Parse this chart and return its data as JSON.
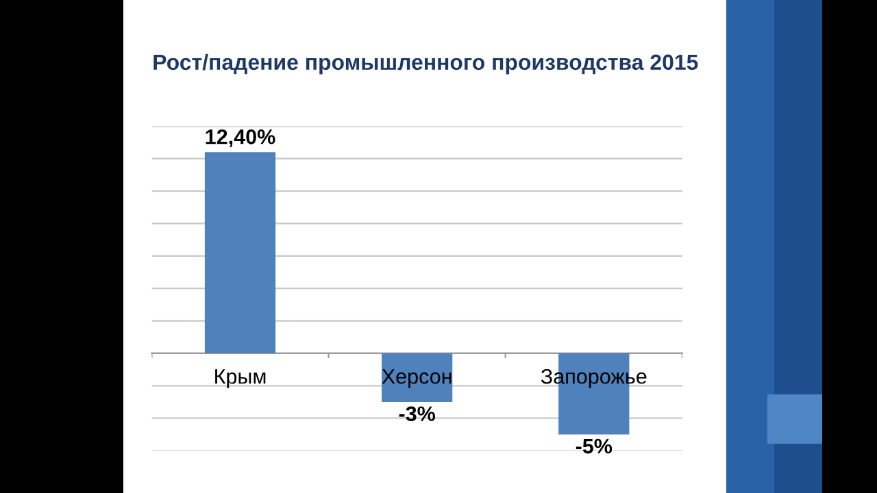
{
  "chart_data": {
    "type": "bar",
    "title": "Рост/падение промышленного производства 2015",
    "categories": [
      "Крым",
      "Херсон",
      "Запорожье"
    ],
    "values": [
      12.4,
      -3,
      -5
    ],
    "value_labels": [
      "12,40%",
      "-3%",
      "-5%"
    ],
    "color": "#4f81bd",
    "ylim": [
      -6,
      14
    ],
    "yticks": [
      {
        "value": -6,
        "label": null
      },
      {
        "value": -4,
        "label": null
      },
      {
        "value": -2,
        "label": null
      },
      {
        "value": 0,
        "label": null
      },
      {
        "value": 2,
        "label": null
      },
      {
        "value": 4,
        "label": null
      },
      {
        "value": 6,
        "label": null
      },
      {
        "value": 8,
        "label": null
      },
      {
        "value": 10,
        "label": null
      },
      {
        "value": 12,
        "label": null
      },
      {
        "value": 14,
        "label": null
      }
    ],
    "grid": "y",
    "tick_labels": "x"
  }
}
